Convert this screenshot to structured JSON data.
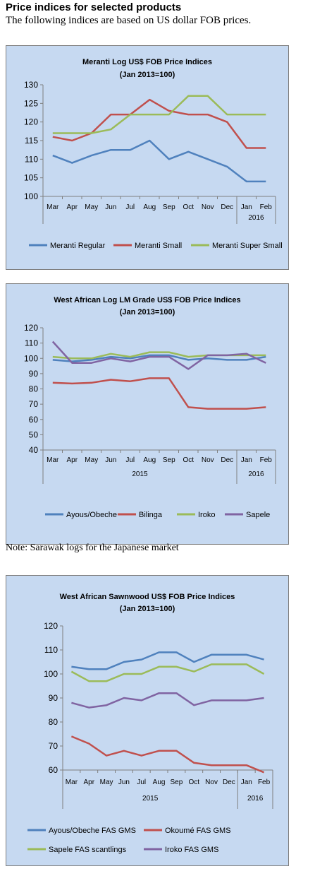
{
  "page": {
    "heading": "Price indices for selected products",
    "subheading": "The following indices are based on US dollar FOB prices.",
    "note": "Note: Sarawak logs for the Japanese market"
  },
  "chart_data": [
    {
      "type": "line",
      "title": "Meranti Log US$ FOB Price Indices",
      "subtitle": "(Jan 2013=100)",
      "categories": [
        "Mar",
        "Apr",
        "May",
        "Jun",
        "Jul",
        "Aug",
        "Sep",
        "Oct",
        "Nov",
        "Dec",
        "Jan",
        "Feb"
      ],
      "year_labels": [
        {
          "label": "2016",
          "from": 10,
          "to": 11
        }
      ],
      "ylim": [
        100,
        130
      ],
      "yticks": [
        100,
        105,
        110,
        115,
        120,
        125,
        130
      ],
      "grid": false,
      "legend": "bottom",
      "series": [
        {
          "name": "Meranti Regular",
          "color": "#4f81bd",
          "values": [
            111,
            109,
            111,
            112.5,
            112.5,
            115,
            110,
            112,
            110,
            108,
            104,
            104
          ]
        },
        {
          "name": "Meranti Small",
          "color": "#c0504d",
          "values": [
            116,
            115,
            117,
            122,
            122,
            126,
            123,
            122,
            122,
            120,
            113,
            113
          ]
        },
        {
          "name": "Meranti Super Small",
          "color": "#9bbb59",
          "values": [
            117,
            117,
            117,
            118,
            122,
            122,
            122,
            127,
            127,
            122,
            122,
            122
          ]
        }
      ]
    },
    {
      "type": "line",
      "title": "West African Log LM Grade US$ FOB Price Indices",
      "subtitle": "(Jan 2013=100)",
      "categories": [
        "Mar",
        "Apr",
        "May",
        "Jun",
        "Jul",
        "Aug",
        "Sep",
        "Oct",
        "Nov",
        "Dec",
        "Jan",
        "Feb"
      ],
      "year_labels": [
        {
          "label": "2015",
          "from": 0,
          "to": 9
        },
        {
          "label": "2016",
          "from": 10,
          "to": 11
        }
      ],
      "ylim": [
        40,
        120
      ],
      "yticks": [
        40,
        50,
        60,
        70,
        80,
        90,
        100,
        110,
        120
      ],
      "grid": false,
      "legend": "bottom",
      "series": [
        {
          "name": "Ayous/Obeche",
          "color": "#4f81bd",
          "values": [
            99,
            98,
            99,
            101,
            100,
            102,
            102,
            99,
            100,
            99,
            99,
            101
          ]
        },
        {
          "name": "Bilinga",
          "color": "#c0504d",
          "values": [
            84,
            83.5,
            84,
            86,
            85,
            87,
            87,
            68,
            67,
            67,
            67,
            68
          ]
        },
        {
          "name": "Iroko",
          "color": "#9bbb59",
          "values": [
            101,
            100,
            100,
            103,
            101,
            104,
            104,
            101,
            102,
            102,
            102,
            102
          ]
        },
        {
          "name": "Sapele",
          "color": "#8064a2",
          "values": [
            111,
            97,
            97,
            100,
            98,
            101,
            101,
            93,
            102,
            102,
            103,
            97
          ]
        }
      ]
    },
    {
      "type": "line",
      "title": "West African Sawnwood US$ FOB Price Indices",
      "subtitle": "(Jan 2013=100)",
      "categories": [
        "Mar",
        "Apr",
        "May",
        "Jun",
        "Jul",
        "Aug",
        "Sep",
        "Oct",
        "Nov",
        "Dec",
        "Jan",
        "Feb"
      ],
      "year_labels": [
        {
          "label": "2015",
          "from": 0,
          "to": 9
        },
        {
          "label": "2016",
          "from": 10,
          "to": 11
        }
      ],
      "ylim": [
        60,
        120
      ],
      "yticks": [
        60,
        70,
        80,
        90,
        100,
        110,
        120
      ],
      "grid": false,
      "legend": "bottom",
      "series": [
        {
          "name": "Ayous/Obeche FAS GMS",
          "color": "#4f81bd",
          "values": [
            103,
            102,
            102,
            105,
            106,
            109,
            109,
            105,
            108,
            108,
            108,
            106
          ]
        },
        {
          "name": "Okoumé FAS GMS",
          "color": "#c0504d",
          "values": [
            74,
            71,
            66,
            68,
            66,
            68,
            68,
            63,
            62,
            62,
            62,
            59
          ]
        },
        {
          "name": "Sapele FAS scantlings",
          "color": "#9bbb59",
          "values": [
            101,
            97,
            97,
            100,
            100,
            103,
            103,
            101,
            104,
            104,
            104,
            100
          ]
        },
        {
          "name": "Iroko FAS GMS",
          "color": "#8064a2",
          "values": [
            88,
            86,
            87,
            90,
            89,
            92,
            92,
            87,
            89,
            89,
            89,
            90
          ]
        }
      ]
    }
  ]
}
